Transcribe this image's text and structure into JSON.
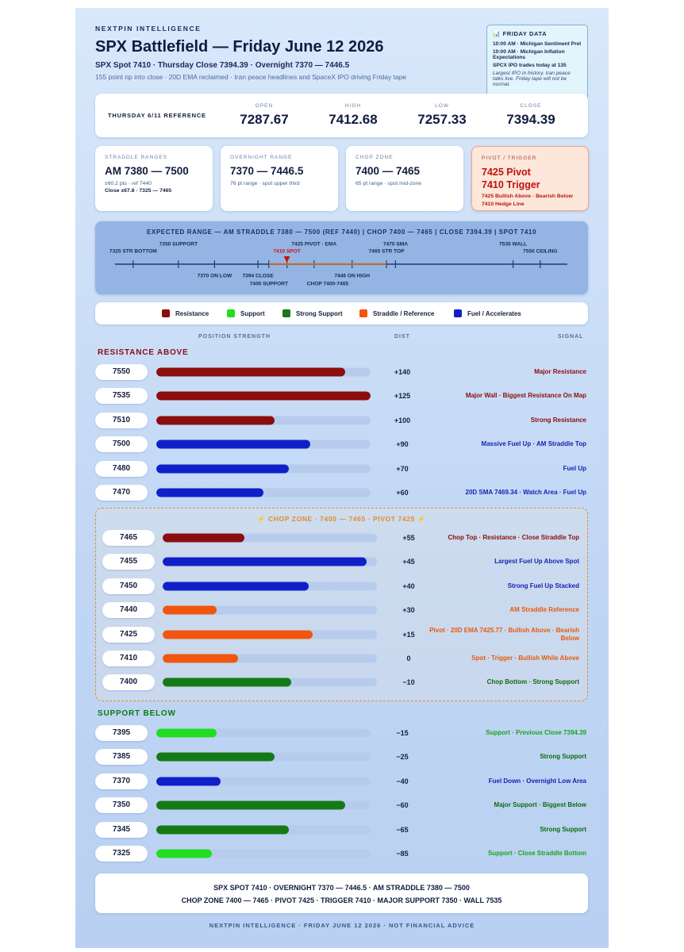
{
  "header": {
    "brand": "NEXTPIN INTELLIGENCE",
    "title": "SPX Battlefield — Friday June 12 2026",
    "subtitle": "SPX Spot 7410 · Thursday Close 7394.39 · Overnight 7370 — 7446.5",
    "tagline": "155 point rip into close · 20D EMA reclaimed · Iran peace headlines and SpaceX IPO driving Friday tape"
  },
  "friday_data": {
    "title": "📊 FRIDAY DATA",
    "items": [
      "10:00 AM · Michigan Sentiment Prel",
      "10:00 AM · Michigan Inflation Expectations",
      "SPCX IPO trades today at 135"
    ],
    "note": "Largest IPO in history. Iran peace talks live. Friday tape will not be normal."
  },
  "reference": {
    "label": "THURSDAY 6/11 REFERENCE",
    "cells": [
      {
        "label": "OPEN",
        "value": "7287.67"
      },
      {
        "label": "HIGH",
        "value": "7412.68"
      },
      {
        "label": "LOW",
        "value": "7257.33"
      },
      {
        "label": "CLOSE",
        "value": "7394.39"
      }
    ]
  },
  "cards": [
    {
      "label": "STRADDLE RANGES",
      "main": [
        "AM 7380 — 7500"
      ],
      "notes": [
        "±60.2 pts · ref 7440",
        "Close ±67.8 · 7325 — 7465"
      ]
    },
    {
      "label": "OVERNIGHT RANGE",
      "main": [
        "7370 — 7446.5"
      ],
      "notes": [
        "76 pt range · spot upper third"
      ]
    },
    {
      "label": "CHOP ZONE",
      "main": [
        "7400 — 7465"
      ],
      "notes": [
        "65 pt range · spot mid-zone"
      ]
    },
    {
      "label": "PIVOT / TRIGGER",
      "main": [
        "7425 Pivot",
        "7410 Trigger"
      ],
      "notes": [
        "7425 Bullish Above · Bearish Below",
        "7410 Hedge Line"
      ]
    }
  ],
  "range_strip": {
    "title": "EXPECTED RANGE — AM STRADDLE 7380 — 7500 (REF 7440) | CHOP 7400 — 7465 | CLOSE 7394.39 | SPOT 7410",
    "xlim": [
      7315,
      7565
    ],
    "markers": [
      {
        "value": 7325,
        "label": "7325 STR BOTTOM",
        "side": "above"
      },
      {
        "value": 7350,
        "label": "7350 SUPPORT",
        "side": "above"
      },
      {
        "value": 7425,
        "label": "7425 PIVOT · EMA",
        "side": "above"
      },
      {
        "value": 7410,
        "label": "7410 SPOT",
        "side": "above",
        "color": "#d01010"
      },
      {
        "value": 7465,
        "label": "7465 STR TOP",
        "side": "above"
      },
      {
        "value": 7470,
        "label": "7470 SMA",
        "side": "above"
      },
      {
        "value": 7535,
        "label": "7535 WALL",
        "side": "above"
      },
      {
        "value": 7550,
        "label": "7550 CEILING",
        "side": "above"
      },
      {
        "value": 7370,
        "label": "7370 ON LOW",
        "side": "below"
      },
      {
        "value": 7394,
        "label": "7394 CLOSE",
        "side": "below"
      },
      {
        "value": 7400,
        "label": "7400 SUPPORT",
        "side": "below"
      },
      {
        "value": 7446,
        "label": "7446 ON HIGH",
        "side": "below"
      },
      {
        "from": 7400,
        "to": 7465,
        "label": "CHOP 7400-7465",
        "side": "below"
      }
    ]
  },
  "legend": [
    {
      "name": "Resistance",
      "color": "#8b0d0d"
    },
    {
      "name": "Support",
      "color": "#22dd22"
    },
    {
      "name": "Strong Support",
      "color": "#157a15"
    },
    {
      "name": "Straddle / Reference",
      "color": "#f0560f"
    },
    {
      "name": "Fuel / Accelerates",
      "color": "#1020c8"
    }
  ],
  "columns": {
    "strength": "POSITION STRENGTH",
    "dist": "DIST",
    "signal": "SIGNAL"
  },
  "resistance": {
    "title": "RESISTANCE ABOVE",
    "rows": [
      {
        "level": "7550",
        "strength": 88,
        "dist": "+140",
        "signal": "Major Resistance",
        "color": "#8b0d0d",
        "text_color": "#8b0d0d"
      },
      {
        "level": "7535",
        "strength": 100,
        "dist": "+125",
        "signal": "Major Wall · Biggest Resistance On Map",
        "color": "#8b0d0d",
        "text_color": "#8b0d0d"
      },
      {
        "level": "7510",
        "strength": 55,
        "dist": "+100",
        "signal": "Strong Resistance",
        "color": "#8b0d0d",
        "text_color": "#8b0d0d"
      },
      {
        "level": "7500",
        "strength": 72,
        "dist": "+90",
        "signal": "Massive Fuel Up · AM Straddle Top",
        "color": "#1020c8",
        "text_color": "#1424b4"
      },
      {
        "level": "7480",
        "strength": 62,
        "dist": "+70",
        "signal": "Fuel Up",
        "color": "#1020c8",
        "text_color": "#1424b4"
      },
      {
        "level": "7470",
        "strength": 50,
        "dist": "+60",
        "signal": "20D SMA 7469.34 · Watch Area · Fuel Up",
        "color": "#1020c8",
        "text_color": "#1424b4"
      }
    ]
  },
  "chop": {
    "title": "⚡ CHOP ZONE · 7400 — 7465 · PIVOT 7425 ⚡",
    "rows": [
      {
        "level": "7465",
        "strength": 38,
        "dist": "+55",
        "signal": "Chop Top · Resistance · Close Straddle Top",
        "color": "#8b0d0d",
        "text_color": "#8b0d0d"
      },
      {
        "level": "7455",
        "strength": 95,
        "dist": "+45",
        "signal": "Largest Fuel Up Above Spot",
        "color": "#1020c8",
        "text_color": "#1424b4"
      },
      {
        "level": "7450",
        "strength": 68,
        "dist": "+40",
        "signal": "Strong Fuel Up Stacked",
        "color": "#1020c8",
        "text_color": "#1424b4"
      },
      {
        "level": "7440",
        "strength": 25,
        "dist": "+30",
        "signal": "AM Straddle Reference",
        "color": "#f0560f",
        "text_color": "#e8590c"
      },
      {
        "level": "7425",
        "strength": 70,
        "dist": "+15",
        "signal": "Pivot · 20D EMA 7425.77 · Bullish Above · Bearish Below",
        "color": "#f0560f",
        "text_color": "#e8590c"
      },
      {
        "level": "7410",
        "strength": 35,
        "dist": "0",
        "signal": "Spot · Trigger · Bullish While Above",
        "color": "#f0560f",
        "text_color": "#e8590c"
      },
      {
        "level": "7400",
        "strength": 60,
        "dist": "−10",
        "signal": "Chop Bottom · Strong Support",
        "color": "#157a15",
        "text_color": "#0d6b0d"
      }
    ]
  },
  "support": {
    "title": "SUPPORT BELOW",
    "rows": [
      {
        "level": "7395",
        "strength": 28,
        "dist": "−15",
        "signal": "Support · Previous Close 7394.39",
        "color": "#22dd22",
        "text_color": "#1aa51a"
      },
      {
        "level": "7385",
        "strength": 55,
        "dist": "−25",
        "signal": "Strong Support",
        "color": "#157a15",
        "text_color": "#0d6b0d"
      },
      {
        "level": "7370",
        "strength": 30,
        "dist": "−40",
        "signal": "Fuel Down · Overnight Low Area",
        "color": "#1020c8",
        "text_color": "#1424b4"
      },
      {
        "level": "7350",
        "strength": 88,
        "dist": "−60",
        "signal": "Major Support · Biggest Below",
        "color": "#157a15",
        "text_color": "#0d6b0d"
      },
      {
        "level": "7345",
        "strength": 62,
        "dist": "−65",
        "signal": "Strong Support",
        "color": "#157a15",
        "text_color": "#0d6b0d"
      },
      {
        "level": "7325",
        "strength": 26,
        "dist": "−85",
        "signal": "Support · Close Straddle Bottom",
        "color": "#22dd22",
        "text_color": "#1aa51a"
      }
    ]
  },
  "summary": [
    "SPX SPOT 7410 · OVERNIGHT 7370 — 7446.5 · AM STRADDLE 7380 — 7500",
    "CHOP ZONE 7400 — 7465 · PIVOT 7425 · TRIGGER 7410 · MAJOR SUPPORT 7350 · WALL 7535"
  ],
  "footer": "NEXTPIN INTELLIGENCE · FRIDAY JUNE 12 2026 · NOT FINANCIAL ADVICE"
}
